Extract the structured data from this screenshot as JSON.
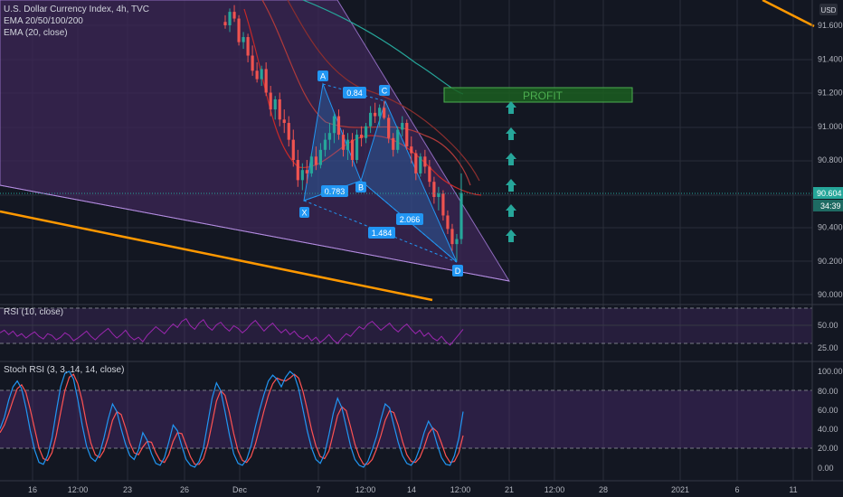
{
  "header": {
    "symbol_line": "U.S. Dollar Currency Index, 4h, TVC",
    "indicators": [
      "EMA 20/50/100/200",
      "EMA (20, close)"
    ],
    "currency": "USD"
  },
  "price_badge": {
    "value": "90.604",
    "countdown": "34:39"
  },
  "annotations": {
    "profit_label": "PROFIT"
  },
  "pattern": {
    "points": [
      "X",
      "A",
      "B",
      "C",
      "D"
    ],
    "ratios": [
      "0.84",
      "0.783",
      "2.066",
      "1.484"
    ]
  },
  "rsi": {
    "title": "RSI (10, close)",
    "ticks": [
      "50.00",
      "25.00"
    ]
  },
  "stoch": {
    "title": "Stoch RSI (3, 3, 14, 14, close)",
    "ticks": [
      "100.00",
      "80.00",
      "60.00",
      "40.00",
      "20.00",
      "0.00"
    ]
  },
  "time_axis": [
    "16",
    "12:00",
    "23",
    "26",
    "Dec",
    "7",
    "12:00",
    "14",
    "12:00",
    "21",
    "12:00",
    "28",
    "2021",
    "6",
    "11"
  ],
  "colors": {
    "background": "#131722",
    "up": "#26a69a",
    "down": "#ef5350",
    "ema_teal": "#26a69a",
    "ema_red": "#b03a3a",
    "wedge_fill": "#3d2757",
    "harmonic": "#2196f3",
    "orange_line": "#ff9800",
    "profit_box": "#1b5e20",
    "arrow": "#26a69a",
    "rsi_line": "#9c27b0",
    "stoch_k": "#2196f3",
    "stoch_d": "#ff5252"
  },
  "chart_data": [
    {
      "type": "candlestick",
      "title": "U.S. Dollar Currency Index, 4h, TVC",
      "price_axis_ticks": [
        "91.600",
        "91.400",
        "91.200",
        "91.000",
        "90.800",
        "90.600",
        "90.400",
        "90.200",
        "90.000"
      ],
      "ylim": [
        89.97,
        91.75
      ],
      "current_price": 90.604,
      "candles": [
        [
          91.62,
          91.66,
          91.58,
          91.6
        ],
        [
          91.6,
          91.7,
          91.56,
          91.68
        ],
        [
          91.68,
          91.72,
          91.62,
          91.64
        ],
        [
          91.64,
          91.66,
          91.48,
          91.5
        ],
        [
          91.5,
          91.56,
          91.46,
          91.53
        ],
        [
          91.53,
          91.55,
          91.38,
          91.42
        ],
        [
          91.42,
          91.48,
          91.3,
          91.33
        ],
        [
          91.33,
          91.38,
          91.26,
          91.28
        ],
        [
          91.28,
          91.36,
          91.24,
          91.34
        ],
        [
          91.34,
          91.38,
          91.18,
          91.2
        ],
        [
          91.2,
          91.24,
          91.06,
          91.1
        ],
        [
          91.1,
          91.18,
          91.04,
          91.16
        ],
        [
          91.16,
          91.2,
          91.0,
          91.04
        ],
        [
          91.04,
          91.1,
          90.96,
          91.02
        ],
        [
          91.02,
          91.06,
          90.88,
          90.92
        ],
        [
          90.92,
          90.98,
          90.76,
          90.8
        ],
        [
          90.8,
          90.86,
          90.64,
          90.68
        ],
        [
          90.68,
          90.78,
          90.62,
          90.74
        ],
        [
          90.74,
          90.8,
          90.66,
          90.72
        ],
        [
          90.72,
          90.84,
          90.7,
          90.82
        ],
        [
          90.82,
          90.88,
          90.74,
          90.77
        ],
        [
          90.77,
          90.9,
          90.75,
          90.86
        ],
        [
          90.86,
          90.96,
          90.82,
          90.92
        ],
        [
          90.92,
          91.02,
          90.86,
          90.96
        ],
        [
          90.96,
          91.08,
          90.9,
          91.06
        ],
        [
          91.06,
          91.1,
          90.92,
          90.95
        ],
        [
          90.95,
          90.98,
          90.82,
          90.86
        ],
        [
          90.86,
          90.96,
          90.8,
          90.92
        ],
        [
          90.92,
          90.96,
          90.76,
          90.8
        ],
        [
          90.8,
          90.98,
          90.78,
          90.95
        ],
        [
          90.95,
          91.0,
          90.88,
          90.93
        ],
        [
          90.93,
          91.02,
          90.9,
          91.0
        ],
        [
          91.0,
          91.12,
          90.96,
          91.08
        ],
        [
          91.08,
          91.14,
          91.02,
          91.06
        ],
        [
          91.06,
          91.13,
          91.0,
          91.11
        ],
        [
          91.11,
          91.15,
          91.04,
          91.05
        ],
        [
          91.05,
          91.07,
          90.9,
          90.93
        ],
        [
          90.93,
          90.96,
          90.82,
          90.86
        ],
        [
          90.86,
          91.0,
          90.84,
          90.98
        ],
        [
          90.98,
          91.06,
          90.94,
          91.02
        ],
        [
          91.02,
          91.04,
          90.86,
          90.88
        ],
        [
          90.88,
          90.94,
          90.78,
          90.84
        ],
        [
          90.84,
          90.86,
          90.68,
          90.72
        ],
        [
          90.72,
          90.84,
          90.7,
          90.82
        ],
        [
          90.82,
          90.86,
          90.72,
          90.76
        ],
        [
          90.76,
          90.8,
          90.64,
          90.67
        ],
        [
          90.67,
          90.7,
          90.54,
          90.58
        ],
        [
          90.58,
          90.64,
          90.5,
          90.6
        ],
        [
          90.6,
          90.62,
          90.44,
          90.47
        ],
        [
          90.47,
          90.5,
          90.36,
          90.39
        ],
        [
          90.39,
          90.42,
          90.26,
          90.3
        ],
        [
          90.3,
          90.36,
          90.2,
          90.33
        ],
        [
          90.33,
          90.72,
          90.3,
          90.604
        ]
      ]
    },
    {
      "type": "line",
      "title": "RSI (10, close)",
      "ticks": [
        "50.00",
        "25.00"
      ],
      "ylim": [
        15,
        75
      ],
      "band": [
        30,
        70
      ],
      "values": [
        42,
        45,
        40,
        44,
        38,
        41,
        36,
        40,
        43,
        38,
        35,
        41,
        39,
        34,
        37,
        42,
        39,
        33,
        36,
        40,
        44,
        38,
        34,
        39,
        43,
        47,
        41,
        36,
        40,
        45,
        38,
        34,
        37,
        32,
        39,
        44,
        49,
        45,
        41,
        47,
        52,
        48,
        55,
        58,
        50,
        46,
        53,
        57,
        49,
        45,
        51,
        54,
        48,
        44,
        50,
        47,
        42,
        46,
        52,
        56,
        50,
        44,
        49,
        53,
        47,
        42,
        46,
        40,
        44,
        38,
        35,
        39,
        33,
        37,
        31,
        35,
        40,
        34,
        30,
        36,
        41,
        38,
        44,
        49,
        46,
        52,
        55,
        50,
        45,
        49,
        53,
        47,
        43,
        48,
        52,
        46,
        41,
        45,
        38,
        42,
        36,
        33,
        38,
        32,
        28,
        34,
        40,
        46
      ]
    },
    {
      "type": "line",
      "title": "Stoch RSI (3, 3, 14, 14, close)",
      "ticks": [
        "100.00",
        "80.00",
        "60.00",
        "40.00",
        "20.00",
        "0.00"
      ],
      "ylim": [
        -8,
        108
      ],
      "band": [
        20,
        80
      ],
      "series": [
        {
          "values": [
            40,
            52,
            70,
            84,
            90,
            82,
            62,
            38,
            18,
            5,
            3,
            12,
            30,
            58,
            84,
            98,
            100,
            92,
            70,
            44,
            22,
            10,
            6,
            14,
            30,
            50,
            66,
            58,
            40,
            24,
            12,
            8,
            18,
            36,
            28,
            14,
            4,
            2,
            10,
            26,
            44,
            38,
            22,
            8,
            2,
            0,
            6,
            20,
            46,
            72,
            88,
            80,
            58,
            34,
            14,
            4,
            2,
            8,
            22,
            42,
            60,
            76,
            90,
            96,
            92,
            84,
            94,
            100,
            96,
            82,
            60,
            38,
            20,
            8,
            4,
            14,
            34,
            56,
            72,
            62,
            42,
            22,
            8,
            2,
            0,
            6,
            18,
            32,
            50,
            66,
            62,
            44,
            26,
            12,
            4,
            2,
            8,
            20,
            36,
            48,
            40,
            24,
            10,
            3,
            2,
            12,
            30,
            58
          ]
        },
        {
          "values": [
            36,
            44,
            56,
            70,
            82,
            86,
            78,
            60,
            40,
            20,
            9,
            7,
            15,
            33,
            57,
            80,
            94,
            97,
            87,
            69,
            45,
            25,
            13,
            10,
            17,
            31,
            49,
            58,
            55,
            41,
            25,
            15,
            13,
            21,
            27,
            26,
            15,
            7,
            5,
            13,
            27,
            36,
            35,
            23,
            11,
            3,
            3,
            9,
            24,
            46,
            69,
            80,
            75,
            57,
            35,
            17,
            7,
            5,
            11,
            24,
            41,
            59,
            75,
            87,
            93,
            91,
            90,
            93,
            97,
            93,
            79,
            60,
            39,
            22,
            11,
            9,
            17,
            35,
            54,
            63,
            59,
            42,
            24,
            11,
            3,
            3,
            8,
            19,
            33,
            49,
            59,
            57,
            44,
            27,
            13,
            6,
            5,
            10,
            21,
            35,
            41,
            37,
            25,
            12,
            5,
            6,
            15,
            33
          ]
        }
      ]
    }
  ]
}
